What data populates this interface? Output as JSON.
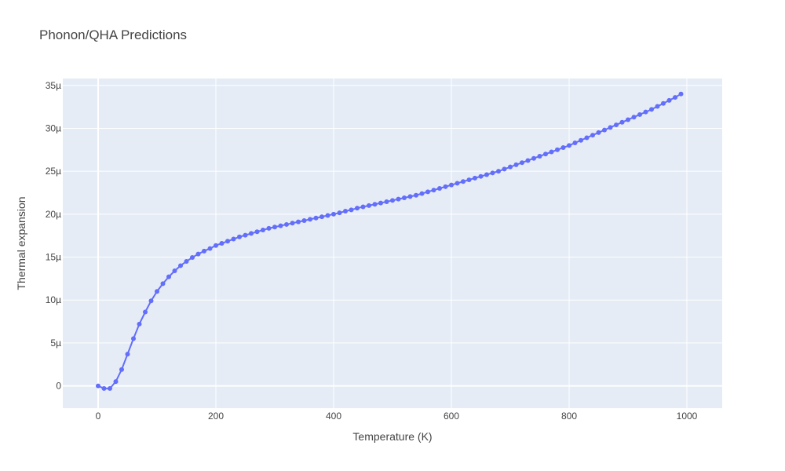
{
  "chart_data": {
    "type": "line",
    "title": "Phonon/QHA Predictions",
    "xlabel": "Temperature (K)",
    "ylabel": "Thermal expansion",
    "xlim": [
      -60,
      1060
    ],
    "ylim": [
      -2.6e-06,
      3.58e-05
    ],
    "xticks": [
      0,
      200,
      400,
      600,
      800,
      1000
    ],
    "xtick_labels": [
      "0",
      "200",
      "400",
      "600",
      "800",
      "1000"
    ],
    "yticks": [
      0,
      5e-06,
      1e-05,
      1.5e-05,
      2e-05,
      2.5e-05,
      3e-05,
      3.5e-05
    ],
    "ytick_labels": [
      "0",
      "5µ",
      "10µ",
      "15µ",
      "20µ",
      "25µ",
      "30µ",
      "35µ"
    ],
    "grid": true,
    "mode": "lines+markers",
    "colors": {
      "series": "#636efa",
      "plot_bg": "#e5ecf6",
      "grid": "#ffffff",
      "text": "#444444"
    },
    "series": [
      {
        "x": [
          0,
          10,
          20,
          30,
          40,
          50,
          60,
          70,
          80,
          90,
          100,
          110,
          120,
          130,
          140,
          150,
          160,
          170,
          180,
          190,
          200,
          210,
          220,
          230,
          240,
          250,
          260,
          270,
          280,
          290,
          300,
          310,
          320,
          330,
          340,
          350,
          360,
          370,
          380,
          390,
          400,
          410,
          420,
          430,
          440,
          450,
          460,
          470,
          480,
          490,
          500,
          510,
          520,
          530,
          540,
          550,
          560,
          570,
          580,
          590,
          600,
          610,
          620,
          630,
          640,
          650,
          660,
          670,
          680,
          690,
          700,
          710,
          720,
          730,
          740,
          750,
          760,
          770,
          780,
          790,
          800,
          810,
          820,
          830,
          840,
          850,
          860,
          870,
          880,
          890,
          900,
          910,
          920,
          930,
          940,
          950,
          960,
          970,
          980,
          990
        ],
        "y": [
          0,
          -3e-07,
          -3e-07,
          5e-07,
          1.9e-06,
          3.7e-06,
          5.5e-06,
          7.2e-06,
          8.6e-06,
          9.9e-06,
          1.1e-05,
          1.19e-05,
          1.27e-05,
          1.34e-05,
          1.4e-05,
          1.45e-05,
          1.495e-05,
          1.535e-05,
          1.57e-05,
          1.6e-05,
          1.635e-05,
          1.66e-05,
          1.685e-05,
          1.71e-05,
          1.735e-05,
          1.755e-05,
          1.775e-05,
          1.795e-05,
          1.815e-05,
          1.835e-05,
          1.85e-05,
          1.865e-05,
          1.88e-05,
          1.895e-05,
          1.91e-05,
          1.925e-05,
          1.94e-05,
          1.955e-05,
          1.97e-05,
          1.985e-05,
          2e-05,
          2.015e-05,
          2.035e-05,
          2.05e-05,
          2.07e-05,
          2.085e-05,
          2.1e-05,
          2.115e-05,
          2.13e-05,
          2.145e-05,
          2.16e-05,
          2.175e-05,
          2.19e-05,
          2.205e-05,
          2.22e-05,
          2.24e-05,
          2.26e-05,
          2.28e-05,
          2.3e-05,
          2.32e-05,
          2.34e-05,
          2.36e-05,
          2.38e-05,
          2.4e-05,
          2.42e-05,
          2.44e-05,
          2.46e-05,
          2.48e-05,
          2.5e-05,
          2.525e-05,
          2.55e-05,
          2.575e-05,
          2.6e-05,
          2.625e-05,
          2.65e-05,
          2.675e-05,
          2.7e-05,
          2.725e-05,
          2.75e-05,
          2.775e-05,
          2.8e-05,
          2.83e-05,
          2.86e-05,
          2.89e-05,
          2.92e-05,
          2.95e-05,
          2.98e-05,
          3.01e-05,
          3.04e-05,
          3.07e-05,
          3.1e-05,
          3.13e-05,
          3.16e-05,
          3.19e-05,
          3.22e-05,
          3.255e-05,
          3.29e-05,
          3.325e-05,
          3.36e-05,
          3.4e-05
        ]
      }
    ]
  }
}
